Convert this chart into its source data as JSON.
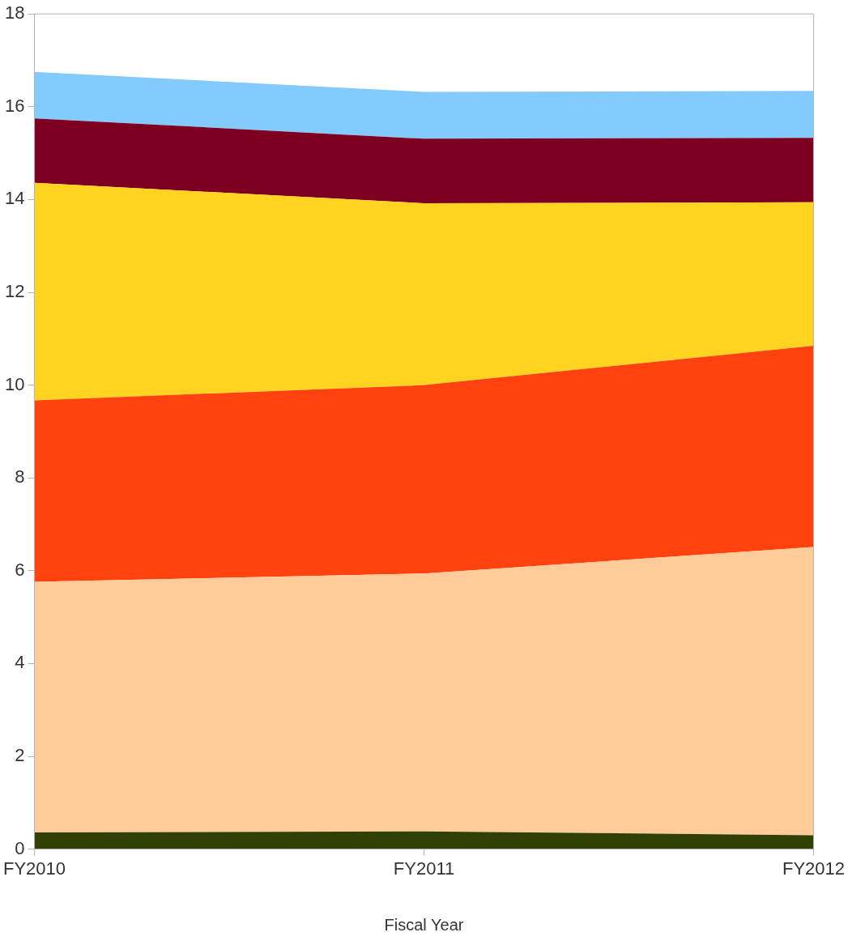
{
  "chart_data": {
    "type": "area",
    "stacked": true,
    "xlabel": "Fiscal Year",
    "categories": [
      "FY2010",
      "FY2011",
      "FY2012"
    ],
    "series": [
      {
        "color": "#314004",
        "values": [
          0.36,
          0.38,
          0.3
        ]
      },
      {
        "color": "#ffcc99",
        "values": [
          5.4,
          5.56,
          6.21
        ]
      },
      {
        "color": "#ff420e",
        "values": [
          3.91,
          4.06,
          4.34
        ]
      },
      {
        "color": "#ffd320",
        "values": [
          4.69,
          3.92,
          3.09
        ]
      },
      {
        "color": "#7e0021",
        "values": [
          1.39,
          1.39,
          1.39
        ]
      },
      {
        "color": "#83caff",
        "values": [
          1.0,
          1.01,
          1.01
        ]
      }
    ],
    "ylim": [
      0,
      18
    ],
    "yticks": [
      0,
      2,
      4,
      6,
      8,
      10,
      12,
      14,
      16,
      18
    ],
    "grid": false,
    "legend": false
  }
}
